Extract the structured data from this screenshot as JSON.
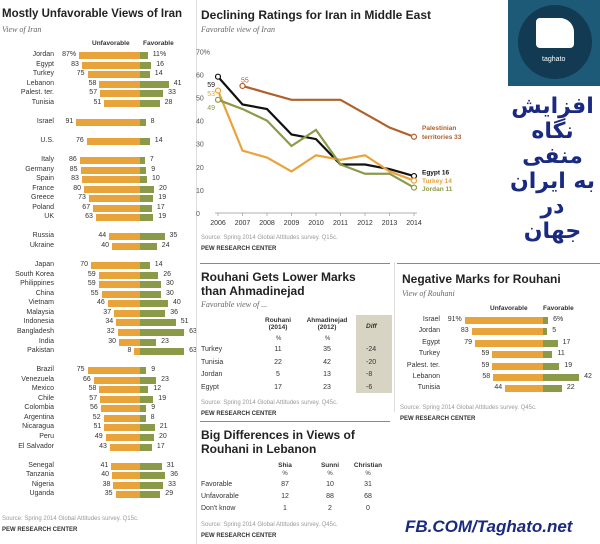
{
  "left": {
    "title": "Mostly Unfavorable Views of Iran",
    "subtitle": "View of Iran",
    "col_unfav": "Unfavorable",
    "col_fav": "Favorable",
    "source": "Source: Spring 2014 Global Attitudes survey. Q15c.",
    "org": "PEW RESEARCH CENTER"
  },
  "mid": {
    "title": "Declining Ratings for Iran in Middle East",
    "subtitle": "Favorable view of Iran",
    "source": "Source: Spring 2014 Global Attitudes survey. Q15c.",
    "org": "PEW RESEARCH CENTER"
  },
  "rouhani": {
    "title": "Rouhani Gets Lower Marks than Ahmadinejad",
    "subtitle": "Favorable view of ...",
    "headers": [
      "Rouhani (2014)",
      "Ahmadinejad (2012)",
      "Diff"
    ],
    "pct": "%",
    "rows": [
      [
        "Turkey",
        "11",
        "35",
        "-24"
      ],
      [
        "Tunisia",
        "22",
        "42",
        "-20"
      ],
      [
        "Jordan",
        "5",
        "13",
        "-8"
      ],
      [
        "Egypt",
        "17",
        "23",
        "-6"
      ]
    ],
    "source": "Source: Spring 2014 Global Attitudes survey. Q45c.",
    "org": "PEW RESEARCH CENTER"
  },
  "lebanon": {
    "title": "Big Differences in Views of Rouhani in Lebanon",
    "headers": [
      "Shia",
      "Sunni",
      "Christian"
    ],
    "pct": "%",
    "rows": [
      [
        "Favorable",
        "87",
        "10",
        "31"
      ],
      [
        "Unfavorable",
        "12",
        "88",
        "68"
      ],
      [
        "Don't know",
        "1",
        "2",
        "0"
      ]
    ],
    "source": "Source: Spring 2014 Global Attitudes survey. Q45c.",
    "org": "PEW RESEARCH CENTER"
  },
  "right": {
    "title": "Negative Marks for Rouhani",
    "subtitle": "View of Rouhani",
    "col_unfav": "Unfavorable",
    "col_fav": "Favorable",
    "source": "Source: Spring 2014 Global Attitudes survey. Q45c.",
    "org": "PEW RESEARCH CENTER"
  },
  "brand": {
    "logo_text": "taghato",
    "persian_lines": [
      "افزایش",
      "نگاه",
      "منفی",
      "به ایران",
      "در",
      "جهان"
    ],
    "footer": "FB.COM/Taghato.net"
  },
  "colors": {
    "unfavorable": "#e8a33a",
    "favorable": "#8b9a48",
    "egypt": "#111111",
    "palestinian": "#b0602a",
    "turkey": "#e8a33a",
    "jordan": "#8b9a48"
  },
  "chart_data": [
    {
      "type": "bar",
      "title": "Mostly Unfavorable Views of Iran",
      "subtitle": "View of Iran",
      "series_names": [
        "Unfavorable",
        "Favorable"
      ],
      "groups": [
        [
          [
            "Jordan",
            "87%",
            "11%",
            87,
            11
          ],
          [
            "Egypt",
            "83",
            "16",
            83,
            16
          ],
          [
            "Turkey",
            "75",
            "14",
            75,
            14
          ],
          [
            "Lebanon",
            "58",
            "41",
            58,
            41
          ],
          [
            "Palest. ter.",
            "57",
            "33",
            57,
            33
          ],
          [
            "Tunisia",
            "51",
            "28",
            51,
            28
          ]
        ],
        [
          [
            "Israel",
            "91",
            "8",
            91,
            8
          ]
        ],
        [
          [
            "U.S.",
            "76",
            "14",
            76,
            14
          ]
        ],
        [
          [
            "Italy",
            "86",
            "7",
            86,
            7
          ],
          [
            "Germany",
            "85",
            "9",
            85,
            9
          ],
          [
            "Spain",
            "83",
            "10",
            83,
            10
          ],
          [
            "France",
            "80",
            "20",
            80,
            20
          ],
          [
            "Greece",
            "73",
            "19",
            73,
            19
          ],
          [
            "Poland",
            "67",
            "17",
            67,
            17
          ],
          [
            "UK",
            "63",
            "19",
            63,
            19
          ]
        ],
        [
          [
            "Russia",
            "44",
            "35",
            44,
            35
          ],
          [
            "Ukraine",
            "40",
            "24",
            40,
            24
          ]
        ],
        [
          [
            "Japan",
            "70",
            "14",
            70,
            14
          ],
          [
            "South Korea",
            "59",
            "26",
            59,
            26
          ],
          [
            "Philippines",
            "59",
            "30",
            59,
            30
          ],
          [
            "China",
            "55",
            "30",
            55,
            30
          ],
          [
            "Vietnam",
            "46",
            "40",
            46,
            40
          ],
          [
            "Malaysia",
            "37",
            "36",
            37,
            36
          ],
          [
            "Indonesia",
            "34",
            "51",
            34,
            51
          ],
          [
            "Bangladesh",
            "32",
            "63",
            32,
            63
          ],
          [
            "India",
            "30",
            "23",
            30,
            23
          ],
          [
            "Pakistan",
            "8",
            "63",
            8,
            63
          ]
        ],
        [
          [
            "Brazil",
            "75",
            "9",
            75,
            9
          ],
          [
            "Venezuela",
            "66",
            "23",
            66,
            23
          ],
          [
            "Mexico",
            "58",
            "12",
            58,
            12
          ],
          [
            "Chile",
            "57",
            "19",
            57,
            19
          ],
          [
            "Colombia",
            "56",
            "9",
            56,
            9
          ],
          [
            "Argentina",
            "52",
            "8",
            52,
            8
          ],
          [
            "Nicaragua",
            "51",
            "21",
            51,
            21
          ],
          [
            "Peru",
            "49",
            "20",
            49,
            20
          ],
          [
            "El Salvador",
            "43",
            "17",
            43,
            17
          ]
        ],
        [
          [
            "Senegal",
            "41",
            "31",
            41,
            31
          ],
          [
            "Tanzania",
            "40",
            "36",
            40,
            36
          ],
          [
            "Nigeria",
            "38",
            "33",
            38,
            33
          ],
          [
            "Uganda",
            "35",
            "29",
            35,
            29
          ]
        ]
      ]
    },
    {
      "type": "line",
      "title": "Declining Ratings for Iran in Middle East",
      "ylim": [
        0,
        70
      ],
      "yticks": [
        "0",
        "10",
        "20",
        "30",
        "40",
        "50",
        "60",
        "70%"
      ],
      "x": [
        "2006",
        "2007",
        "2008",
        "2009",
        "2010",
        "2011",
        "2012",
        "2013",
        "2014"
      ],
      "series": [
        {
          "name": "Palestinian territories",
          "key": "palestinian",
          "values": [
            null,
            55,
            52,
            49,
            49,
            49,
            43,
            37,
            33
          ],
          "start_label": "55",
          "end_label": "33"
        },
        {
          "name": "Egypt",
          "key": "egypt",
          "values": [
            59,
            47,
            45,
            34,
            32,
            21,
            21,
            19,
            16
          ],
          "start_label": "59",
          "end_label": "16"
        },
        {
          "name": "Turkey",
          "key": "turkey",
          "values": [
            53,
            27,
            24,
            18,
            25,
            23,
            25,
            18,
            14
          ],
          "start_label": "53",
          "end_label": "14"
        },
        {
          "name": "Jordan",
          "key": "jordan",
          "values": [
            49,
            45,
            40,
            29,
            36,
            21,
            17,
            17,
            11
          ],
          "start_label": "49",
          "end_label": "11"
        }
      ]
    },
    {
      "type": "bar",
      "title": "Negative Marks for Rouhani",
      "series_names": [
        "Unfavorable",
        "Favorable"
      ],
      "rows": [
        [
          "Israel",
          "91%",
          "6%",
          91,
          6
        ],
        [
          "Jordan",
          "83",
          "5",
          83,
          5
        ],
        [
          "Egypt",
          "79",
          "17",
          79,
          17
        ],
        [
          "Turkey",
          "59",
          "11",
          59,
          11
        ],
        [
          "Palest. ter.",
          "59",
          "19",
          59,
          19
        ],
        [
          "Lebanon",
          "58",
          "42",
          58,
          42
        ],
        [
          "Tunisia",
          "44",
          "22",
          44,
          22
        ]
      ]
    }
  ]
}
